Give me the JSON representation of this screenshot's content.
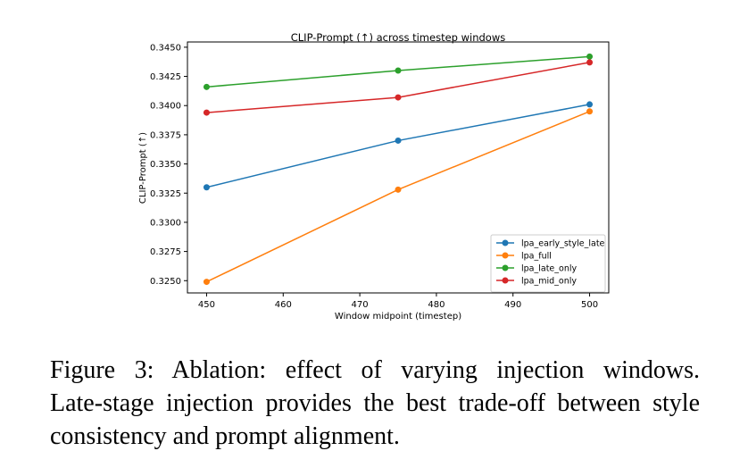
{
  "chart_data": {
    "type": "line",
    "title": "CLIP-Prompt (↑) across timestep windows",
    "xlabel": "Window midpoint (timestep)",
    "ylabel": "CLIP-Prompt (↑)",
    "x": [
      450,
      475,
      500
    ],
    "xlim": [
      447.5,
      502.5
    ],
    "ylim": [
      0.32395,
      0.34545
    ],
    "xticks": [
      "450",
      "460",
      "470",
      "480",
      "490",
      "500"
    ],
    "yticks": [
      "0.3250",
      "0.3275",
      "0.3300",
      "0.3325",
      "0.3350",
      "0.3375",
      "0.3400",
      "0.3425",
      "0.3450"
    ],
    "grid": false,
    "legend_position": "lower-right",
    "series": [
      {
        "name": "lpa_early_style_late",
        "color": "#1f77b4",
        "values": [
          0.333,
          0.337,
          0.3401
        ]
      },
      {
        "name": "lpa_full",
        "color": "#ff7f0e",
        "values": [
          0.3249,
          0.3328,
          0.3395
        ]
      },
      {
        "name": "lpa_late_only",
        "color": "#2ca02c",
        "values": [
          0.3416,
          0.343,
          0.3442
        ]
      },
      {
        "name": "lpa_mid_only",
        "color": "#d62728",
        "values": [
          0.3394,
          0.3407,
          0.3437
        ]
      }
    ]
  },
  "caption": {
    "line1": "Figure 3:  Ablation:  effect of varying injection windows.",
    "line2": "Late-stage injection provides the best trade-off between style",
    "line3": "consistency and prompt alignment."
  }
}
